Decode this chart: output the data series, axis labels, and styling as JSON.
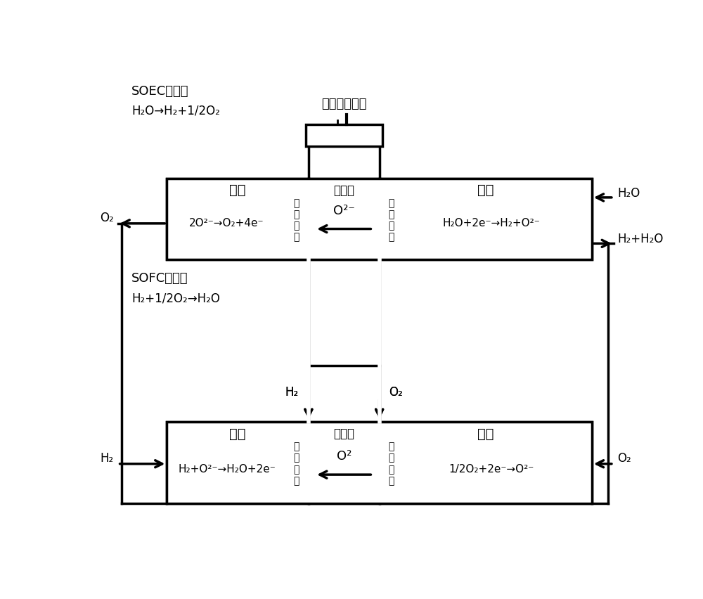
{
  "bg_color": "#ffffff",
  "line_color": "#000000",
  "text_color": "#000000",
  "title_soec": "SOEC系统：",
  "title_sofc": "SOFC系统：",
  "soec_eq": "H₂O→H₂+1/2O₂",
  "sofc_eq": "H₂+1/2O₂→H₂O",
  "wind_solar_label": "风能、太阳能",
  "soec_anode_label": "阳极",
  "soec_electrolyte_label": "电解质",
  "soec_cathode_label": "阴极",
  "sofc_anode_label": "阳极",
  "sofc_electrolyte_label": "电解质",
  "sofc_cathode_label": "阴极",
  "soec_anode_reaction": "2O²⁻→O₂+4e⁻",
  "soec_anode_side": "氧\n化\n反\n应",
  "soec_electrolyte_ion": "O²⁻",
  "soec_cathode_side": "还\n原\n反\n应",
  "soec_cathode_reaction": "H₂O+2e⁻→H₂+O²⁻",
  "sofc_anode_reaction": "H₂+O²⁻→H₂O+2e⁻",
  "sofc_anode_side": "氧\n化\n反\n应",
  "sofc_electrolyte_ion": "O²",
  "sofc_cathode_side": "还\n原\n反\n应",
  "sofc_cathode_reaction": "1/2O₂+2e⁻→O²⁻",
  "soec_o2_label": "O₂",
  "soec_h2o_in": "H₂O",
  "soec_h2h2o_out": "H₂+H₂O",
  "sofc_h2_in": "H₂",
  "sofc_o2_in": "O₂",
  "sofc_h2_label": "H₂",
  "sofc_o2_label": "O₂"
}
